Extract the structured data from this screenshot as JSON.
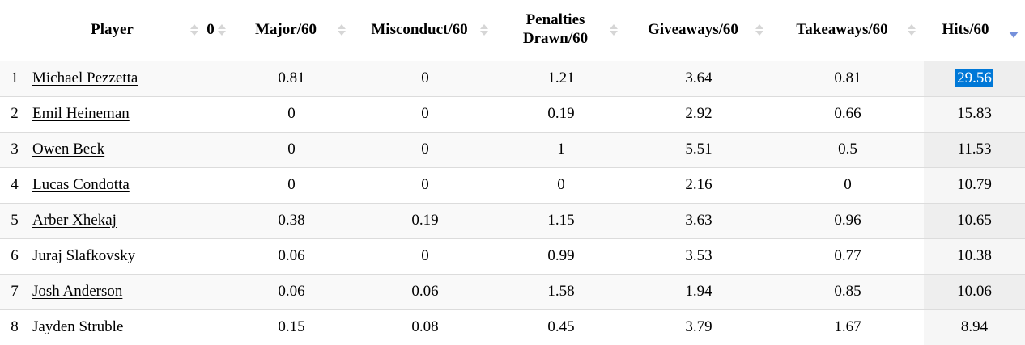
{
  "table": {
    "columns": {
      "rank": {
        "label": "",
        "sort": "none"
      },
      "player": {
        "label": "Player",
        "sort": "both"
      },
      "zero": {
        "label": "0",
        "sort": "both"
      },
      "major": {
        "label": "Major/60",
        "sort": "both"
      },
      "misconduct": {
        "label": "Misconduct/60",
        "sort": "both"
      },
      "penalties_drawn": {
        "label": "Penalties Drawn/60",
        "sort": "both"
      },
      "giveaways": {
        "label": "Giveaways/60",
        "sort": "both"
      },
      "takeaways": {
        "label": "Takeaways/60",
        "sort": "both"
      },
      "hits": {
        "label": "Hits/60",
        "sort": "desc"
      }
    },
    "rows": [
      {
        "rank": "1",
        "player": "Michael Pezzetta",
        "zero": "",
        "major": "0.81",
        "misconduct": "0",
        "penalties_drawn": "1.21",
        "giveaways": "3.64",
        "takeaways": "0.81",
        "hits": "29.56",
        "hits_selected": true
      },
      {
        "rank": "2",
        "player": "Emil Heineman",
        "zero": "",
        "major": "0",
        "misconduct": "0",
        "penalties_drawn": "0.19",
        "giveaways": "2.92",
        "takeaways": "0.66",
        "hits": "15.83",
        "hits_selected": false
      },
      {
        "rank": "3",
        "player": "Owen Beck",
        "zero": "",
        "major": "0",
        "misconduct": "0",
        "penalties_drawn": "1",
        "giveaways": "5.51",
        "takeaways": "0.5",
        "hits": "11.53",
        "hits_selected": false
      },
      {
        "rank": "4",
        "player": "Lucas Condotta",
        "zero": "",
        "major": "0",
        "misconduct": "0",
        "penalties_drawn": "0",
        "giveaways": "2.16",
        "takeaways": "0",
        "hits": "10.79",
        "hits_selected": false
      },
      {
        "rank": "5",
        "player": "Arber Xhekaj",
        "zero": "",
        "major": "0.38",
        "misconduct": "0.19",
        "penalties_drawn": "1.15",
        "giveaways": "3.63",
        "takeaways": "0.96",
        "hits": "10.65",
        "hits_selected": false
      },
      {
        "rank": "6",
        "player": "Juraj Slafkovsky",
        "zero": "",
        "major": "0.06",
        "misconduct": "0",
        "penalties_drawn": "0.99",
        "giveaways": "3.53",
        "takeaways": "0.77",
        "hits": "10.38",
        "hits_selected": false
      },
      {
        "rank": "7",
        "player": "Josh Anderson",
        "zero": "",
        "major": "0.06",
        "misconduct": "0.06",
        "penalties_drawn": "1.58",
        "giveaways": "1.94",
        "takeaways": "0.85",
        "hits": "10.06",
        "hits_selected": false
      },
      {
        "rank": "8",
        "player": "Jayden Struble",
        "zero": "",
        "major": "0.15",
        "misconduct": "0.08",
        "penalties_drawn": "0.45",
        "giveaways": "3.79",
        "takeaways": "1.67",
        "hits": "8.94",
        "hits_selected": false
      }
    ],
    "sorted_column": "hits",
    "sort_direction": "descending"
  },
  "colors": {
    "selection_bg": "#0078d7",
    "selection_text": "#ffffff",
    "sort_arrow_inactive": "#d6d6d6",
    "sort_arrow_active": "#7590db",
    "stripe_row": "#f9f9f9",
    "sorted_col_even_row": "#f6f6f6",
    "sorted_col_odd_row": "#eeeeee",
    "header_border": "#333333",
    "row_border": "#dcdcdc"
  }
}
